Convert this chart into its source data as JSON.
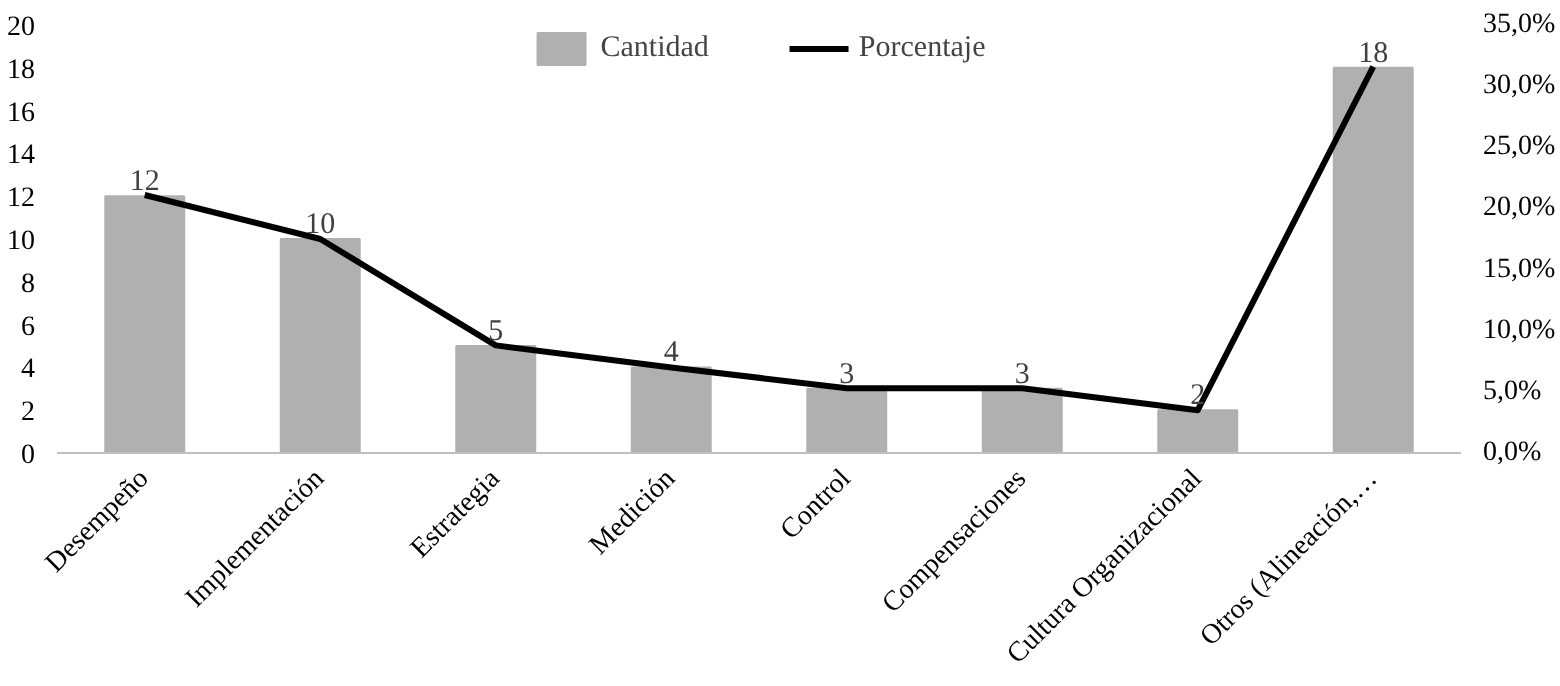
{
  "chart_data": {
    "type": "bar",
    "categories": [
      "Desempeño",
      "Implementación",
      "Estrategia",
      "Medición",
      "Control",
      "Compensaciones",
      "Cultura Organizacional",
      "Otros (Alineación,…"
    ],
    "series": [
      {
        "name": "Cantidad",
        "color": "#b0b0b0",
        "values": [
          12,
          10,
          5,
          4,
          3,
          3,
          2,
          18
        ],
        "value_labels": [
          "12",
          "10",
          "5",
          "4",
          "3",
          "3",
          "2",
          "18"
        ]
      },
      {
        "name": "Porcentaje",
        "type": "line",
        "axis": "y2",
        "color": "#000000",
        "values": [
          21.1,
          17.5,
          8.8,
          7.0,
          5.3,
          5.3,
          3.5,
          31.6
        ]
      }
    ],
    "ylim": [
      0,
      20
    ],
    "yticks": [
      0,
      2,
      4,
      6,
      8,
      10,
      12,
      14,
      16,
      18,
      20
    ],
    "y2lim": [
      0,
      35
    ],
    "y2ticks": [
      {
        "value": 0,
        "label": "0,0%"
      },
      {
        "value": 5,
        "label": "5,0%"
      },
      {
        "value": 10,
        "label": "10,0%"
      },
      {
        "value": 15,
        "label": "15,0%"
      },
      {
        "value": 20,
        "label": "20,0%"
      },
      {
        "value": 25,
        "label": "25,0%"
      },
      {
        "value": 30,
        "label": "30,0%"
      },
      {
        "value": 35,
        "label": "35,0%"
      }
    ],
    "legend": "top",
    "grid": false
  }
}
